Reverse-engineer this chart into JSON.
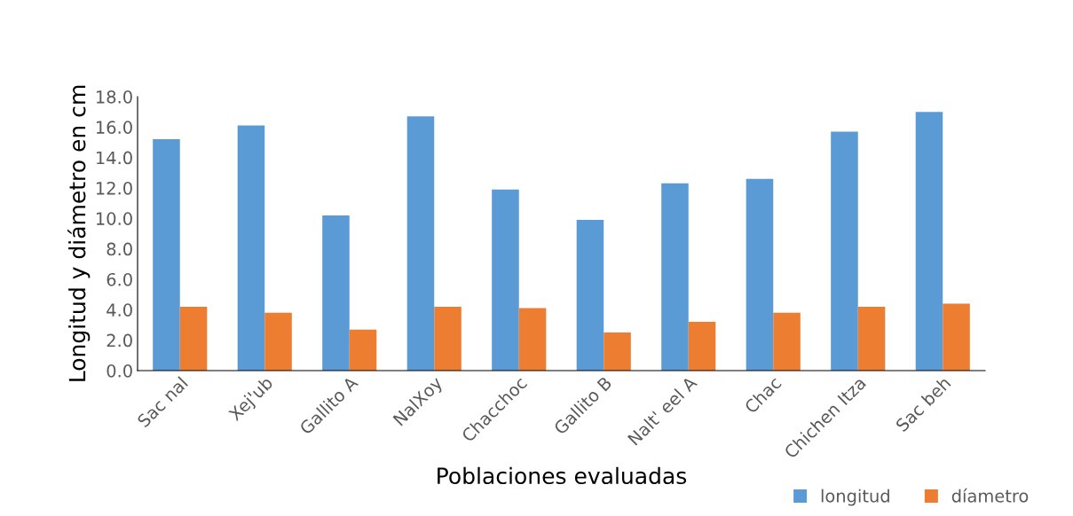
{
  "chart_data": {
    "type": "bar",
    "xlabel": "Poblaciones evaluadas",
    "ylabel": "Longitud y diámetro en cm",
    "categories": [
      "Sac nal",
      "Xej'ub",
      "Gallito A",
      "NalXoy",
      "Chacchoc",
      "Gallito B",
      "Nalt' eel A",
      "Chac",
      "Chichen Itza",
      "Sac beh"
    ],
    "series": [
      {
        "name": "longitud",
        "color": "#5b9bd5",
        "values": [
          15.2,
          16.1,
          10.2,
          16.7,
          11.9,
          9.9,
          12.3,
          12.6,
          15.7,
          17.0
        ]
      },
      {
        "name": "díametro",
        "color": "#ed7d31",
        "values": [
          4.2,
          3.8,
          2.7,
          4.2,
          4.1,
          2.5,
          3.2,
          3.8,
          4.2,
          4.4
        ]
      }
    ],
    "ylim": [
      0,
      18
    ],
    "yticks": [
      {
        "value": 0,
        "label": "0.0"
      },
      {
        "value": 2,
        "label": "2.0"
      },
      {
        "value": 4,
        "label": "4.0"
      },
      {
        "value": 6,
        "label": "6.0"
      },
      {
        "value": 8,
        "label": "8.0"
      },
      {
        "value": 10,
        "label": "10.0"
      },
      {
        "value": 12,
        "label": "12.0"
      },
      {
        "value": 14,
        "label": "14.0"
      },
      {
        "value": 16,
        "label": "16.0"
      },
      {
        "value": 18,
        "label": "18.0"
      }
    ],
    "grid": false,
    "legend": "bottom right"
  }
}
